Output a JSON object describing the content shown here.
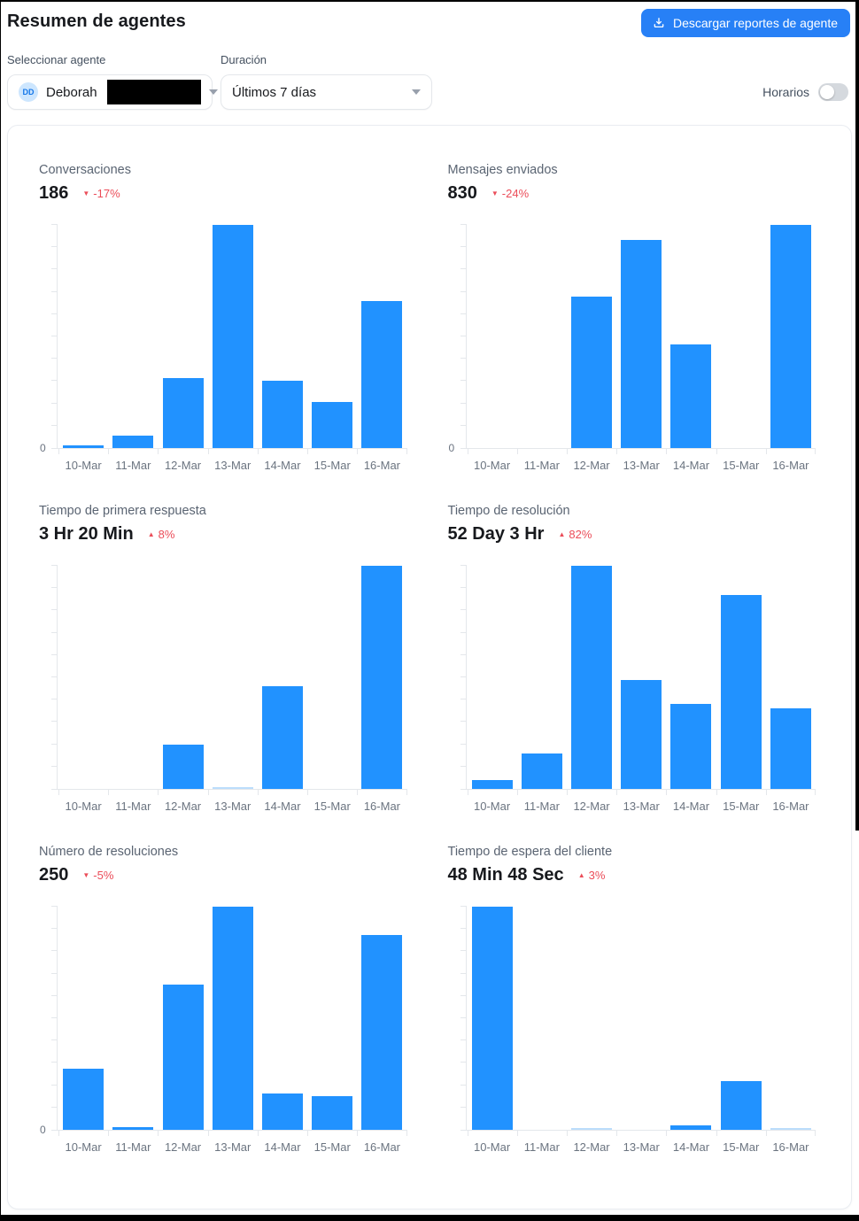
{
  "page": {
    "title": "Resumen de agentes"
  },
  "header": {
    "download_button_label": "Descargar reportes de agente"
  },
  "filters": {
    "agent": {
      "label": "Seleccionar agente",
      "value": "Deborah",
      "avatar_initials": "DD",
      "name_partially_redacted": true
    },
    "duration": {
      "label": "Duración",
      "value": "Últimos 7 días"
    },
    "business_hours": {
      "label": "Horarios",
      "enabled": false
    }
  },
  "icons": {
    "down": "▼",
    "up": "▲"
  },
  "colors": {
    "bar": "#2192ff",
    "bar_light": "#bbddfc",
    "trend_negative": "#eb4d59",
    "button": "#2780f6",
    "axis": "#e4e7eb"
  },
  "chart_data": [
    {
      "type": "bar",
      "title": "Conversaciones",
      "metric": "186",
      "trend": "-17%",
      "trend_direction": "down",
      "categories": [
        "10-Mar",
        "11-Mar",
        "12-Mar",
        "13-Mar",
        "14-Mar",
        "15-Mar",
        "16-Mar"
      ],
      "values": [
        1,
        4,
        23,
        73,
        22,
        15,
        48
      ],
      "ymax": 73,
      "zero_label": "0",
      "xlabel": "",
      "ylabel": "",
      "grid": false,
      "legend": false
    },
    {
      "type": "bar",
      "title": "Mensajes enviados",
      "metric": "830",
      "trend": "-24%",
      "trend_direction": "down",
      "categories": [
        "10-Mar",
        "11-Mar",
        "12-Mar",
        "13-Mar",
        "14-Mar",
        "15-Mar",
        "16-Mar"
      ],
      "values": [
        0,
        0,
        183,
        252,
        125,
        0,
        270
      ],
      "ymax": 270,
      "zero_label": "0",
      "xlabel": "",
      "ylabel": "",
      "grid": false,
      "legend": false
    },
    {
      "type": "bar",
      "title": "Tiempo de primera respuesta",
      "metric": "3 Hr 20 Min",
      "trend": "8%",
      "trend_direction": "up",
      "categories": [
        "10-Mar",
        "11-Mar",
        "12-Mar",
        "13-Mar",
        "14-Mar",
        "15-Mar",
        "16-Mar"
      ],
      "values": [
        0,
        0,
        20,
        0.4,
        46,
        0,
        100
      ],
      "values_unit": "percent_of_max",
      "light_indices": [
        3
      ],
      "ymax": 100,
      "zero_label": null,
      "xlabel": "",
      "ylabel": "",
      "grid": false,
      "legend": false
    },
    {
      "type": "bar",
      "title": "Tiempo de resolución",
      "metric": "52 Day 3 Hr",
      "trend": "82%",
      "trend_direction": "up",
      "categories": [
        "10-Mar",
        "11-Mar",
        "12-Mar",
        "13-Mar",
        "14-Mar",
        "15-Mar",
        "16-Mar"
      ],
      "values": [
        4,
        16,
        100,
        49,
        38,
        87,
        36
      ],
      "values_unit": "percent_of_max",
      "ymax": 100,
      "zero_label": null,
      "xlabel": "",
      "ylabel": "",
      "grid": false,
      "legend": false
    },
    {
      "type": "bar",
      "title": "Número de resoluciones",
      "metric": "250",
      "trend": "-5%",
      "trend_direction": "down",
      "categories": [
        "10-Mar",
        "11-Mar",
        "12-Mar",
        "13-Mar",
        "14-Mar",
        "15-Mar",
        "16-Mar"
      ],
      "values": [
        22,
        1,
        52,
        80,
        13,
        12,
        70
      ],
      "ymax": 80,
      "zero_label": "0",
      "xlabel": "",
      "ylabel": "",
      "grid": false,
      "legend": false
    },
    {
      "type": "bar",
      "title": "Tiempo de espera del cliente",
      "metric": "48 Min 48 Sec",
      "trend": "3%",
      "trend_direction": "up",
      "categories": [
        "10-Mar",
        "11-Mar",
        "12-Mar",
        "13-Mar",
        "14-Mar",
        "15-Mar",
        "16-Mar"
      ],
      "values": [
        100,
        0,
        0.5,
        0,
        2,
        22,
        0.5
      ],
      "values_unit": "percent_of_max",
      "light_indices": [
        2,
        6
      ],
      "ymax": 100,
      "zero_label": null,
      "xlabel": "",
      "ylabel": "",
      "grid": false,
      "legend": false
    }
  ]
}
